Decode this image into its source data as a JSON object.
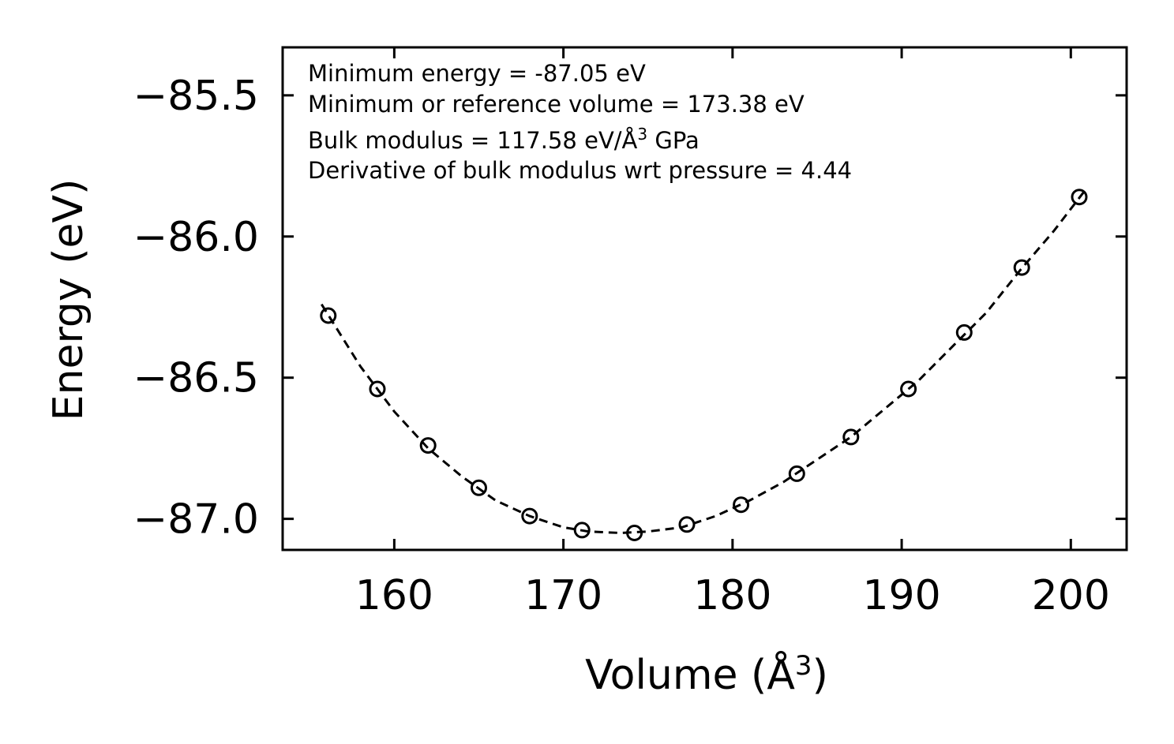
{
  "chart_data": {
    "type": "scatter",
    "xlabel": "Volume (Å",
    "xlabel_sup": "3",
    "xlabel_close": ")",
    "ylabel": "Energy (eV)",
    "xlim": [
      153.4,
      203.3
    ],
    "ylim": [
      -87.11,
      -85.33
    ],
    "x_ticks": [
      160,
      170,
      180,
      190,
      200
    ],
    "x_tick_labels": [
      "160",
      "170",
      "180",
      "190",
      "200"
    ],
    "y_ticks": [
      -85.5,
      -86.0,
      -86.5,
      -87.0
    ],
    "y_tick_labels": [
      "−85.5",
      "−86.0",
      "−86.5",
      "−87.0"
    ],
    "legend": "none",
    "grid": false,
    "annotations": {
      "min_energy": "Minimum energy = -87.05 eV",
      "min_volume": "Minimum or reference volume = 173.38 eV",
      "bulk_prefix": "Bulk modulus = 117.58 eV/Å",
      "bulk_sup": "3",
      "bulk_suffix": " GPa",
      "derivative": "Derivative of bulk modulus wrt pressure = 4.44"
    },
    "series": [
      {
        "name": "data",
        "style": "open-circle",
        "x": [
          156.1,
          159.0,
          162.0,
          165.0,
          168.0,
          171.1,
          174.2,
          177.3,
          180.5,
          183.8,
          187.0,
          190.4,
          193.7,
          197.1,
          200.5
        ],
        "y": [
          -86.28,
          -86.54,
          -86.74,
          -86.89,
          -86.99,
          -87.04,
          -87.05,
          -87.02,
          -86.95,
          -86.84,
          -86.71,
          -86.54,
          -86.34,
          -86.11,
          -85.86
        ]
      },
      {
        "name": "fit",
        "style": "dashed-line",
        "x": [
          155.7,
          158.0,
          160.0,
          162.0,
          164.0,
          166.0,
          168.0,
          170.0,
          171.5,
          173.38,
          175.0,
          177.0,
          179.0,
          181.0,
          183.0,
          185.0,
          187.0,
          189.0,
          191.0,
          193.0,
          195.0,
          197.0,
          199.0,
          200.8
        ],
        "y": [
          -86.24,
          -86.46,
          -86.62,
          -86.75,
          -86.85,
          -86.935,
          -86.99,
          -87.03,
          -87.045,
          -87.05,
          -87.045,
          -87.03,
          -86.99,
          -86.935,
          -86.87,
          -86.79,
          -86.71,
          -86.61,
          -86.51,
          -86.39,
          -86.27,
          -86.12,
          -85.98,
          -85.84
        ]
      }
    ]
  }
}
